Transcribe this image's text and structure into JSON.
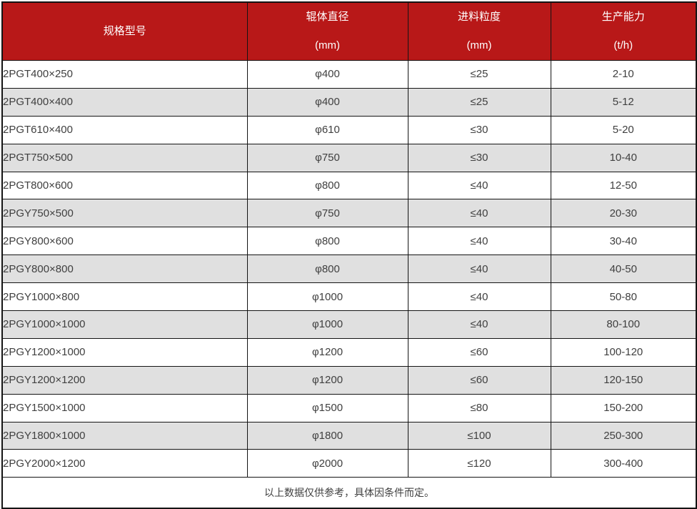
{
  "colors": {
    "header_bg": "#b81818",
    "header_text": "#ffffff",
    "stripe_bg": "#e0e0e0",
    "row_bg": "#ffffff",
    "border": "#141414",
    "body_text": "#404040"
  },
  "chart_data": {
    "type": "table",
    "title": "",
    "columns": [
      {
        "name": "规格型号",
        "unit": ""
      },
      {
        "name": "辊体直径",
        "unit": "(mm)"
      },
      {
        "name": "进料粒度",
        "unit": "(mm)"
      },
      {
        "name": "生产能力",
        "unit": "(t/h)"
      }
    ],
    "rows": [
      [
        "2PGT400×250",
        "φ400",
        "≤25",
        "2-10"
      ],
      [
        "2PGT400×400",
        "φ400",
        "≤25",
        "5-12"
      ],
      [
        "2PGT610×400",
        "φ610",
        "≤30",
        "5-20"
      ],
      [
        "2PGT750×500",
        "φ750",
        "≤30",
        "10-40"
      ],
      [
        "2PGT800×600",
        "φ800",
        "≤40",
        "12-50"
      ],
      [
        "2PGY750×500",
        "φ750",
        "≤40",
        "20-30"
      ],
      [
        "2PGY800×600",
        "φ800",
        "≤40",
        "30-40"
      ],
      [
        "2PGY800×800",
        "φ800",
        "≤40",
        "40-50"
      ],
      [
        "2PGY1000×800",
        "φ1000",
        "≤40",
        "50-80"
      ],
      [
        "2PGY1000×1000",
        "φ1000",
        "≤40",
        "80-100"
      ],
      [
        "2PGY1200×1000",
        "φ1200",
        "≤60",
        "100-120"
      ],
      [
        "2PGY1200×1200",
        "φ1200",
        "≤60",
        "120-150"
      ],
      [
        "2PGY1500×1000",
        "φ1500",
        "≤80",
        "150-200"
      ],
      [
        "2PGY1800×1000",
        "φ1800",
        "≤100",
        "250-300"
      ],
      [
        "2PGY2000×1200",
        "φ2000",
        "≤120",
        "300-400"
      ]
    ],
    "footnote": "以上数据仅供参考，具体因条件而定。"
  }
}
